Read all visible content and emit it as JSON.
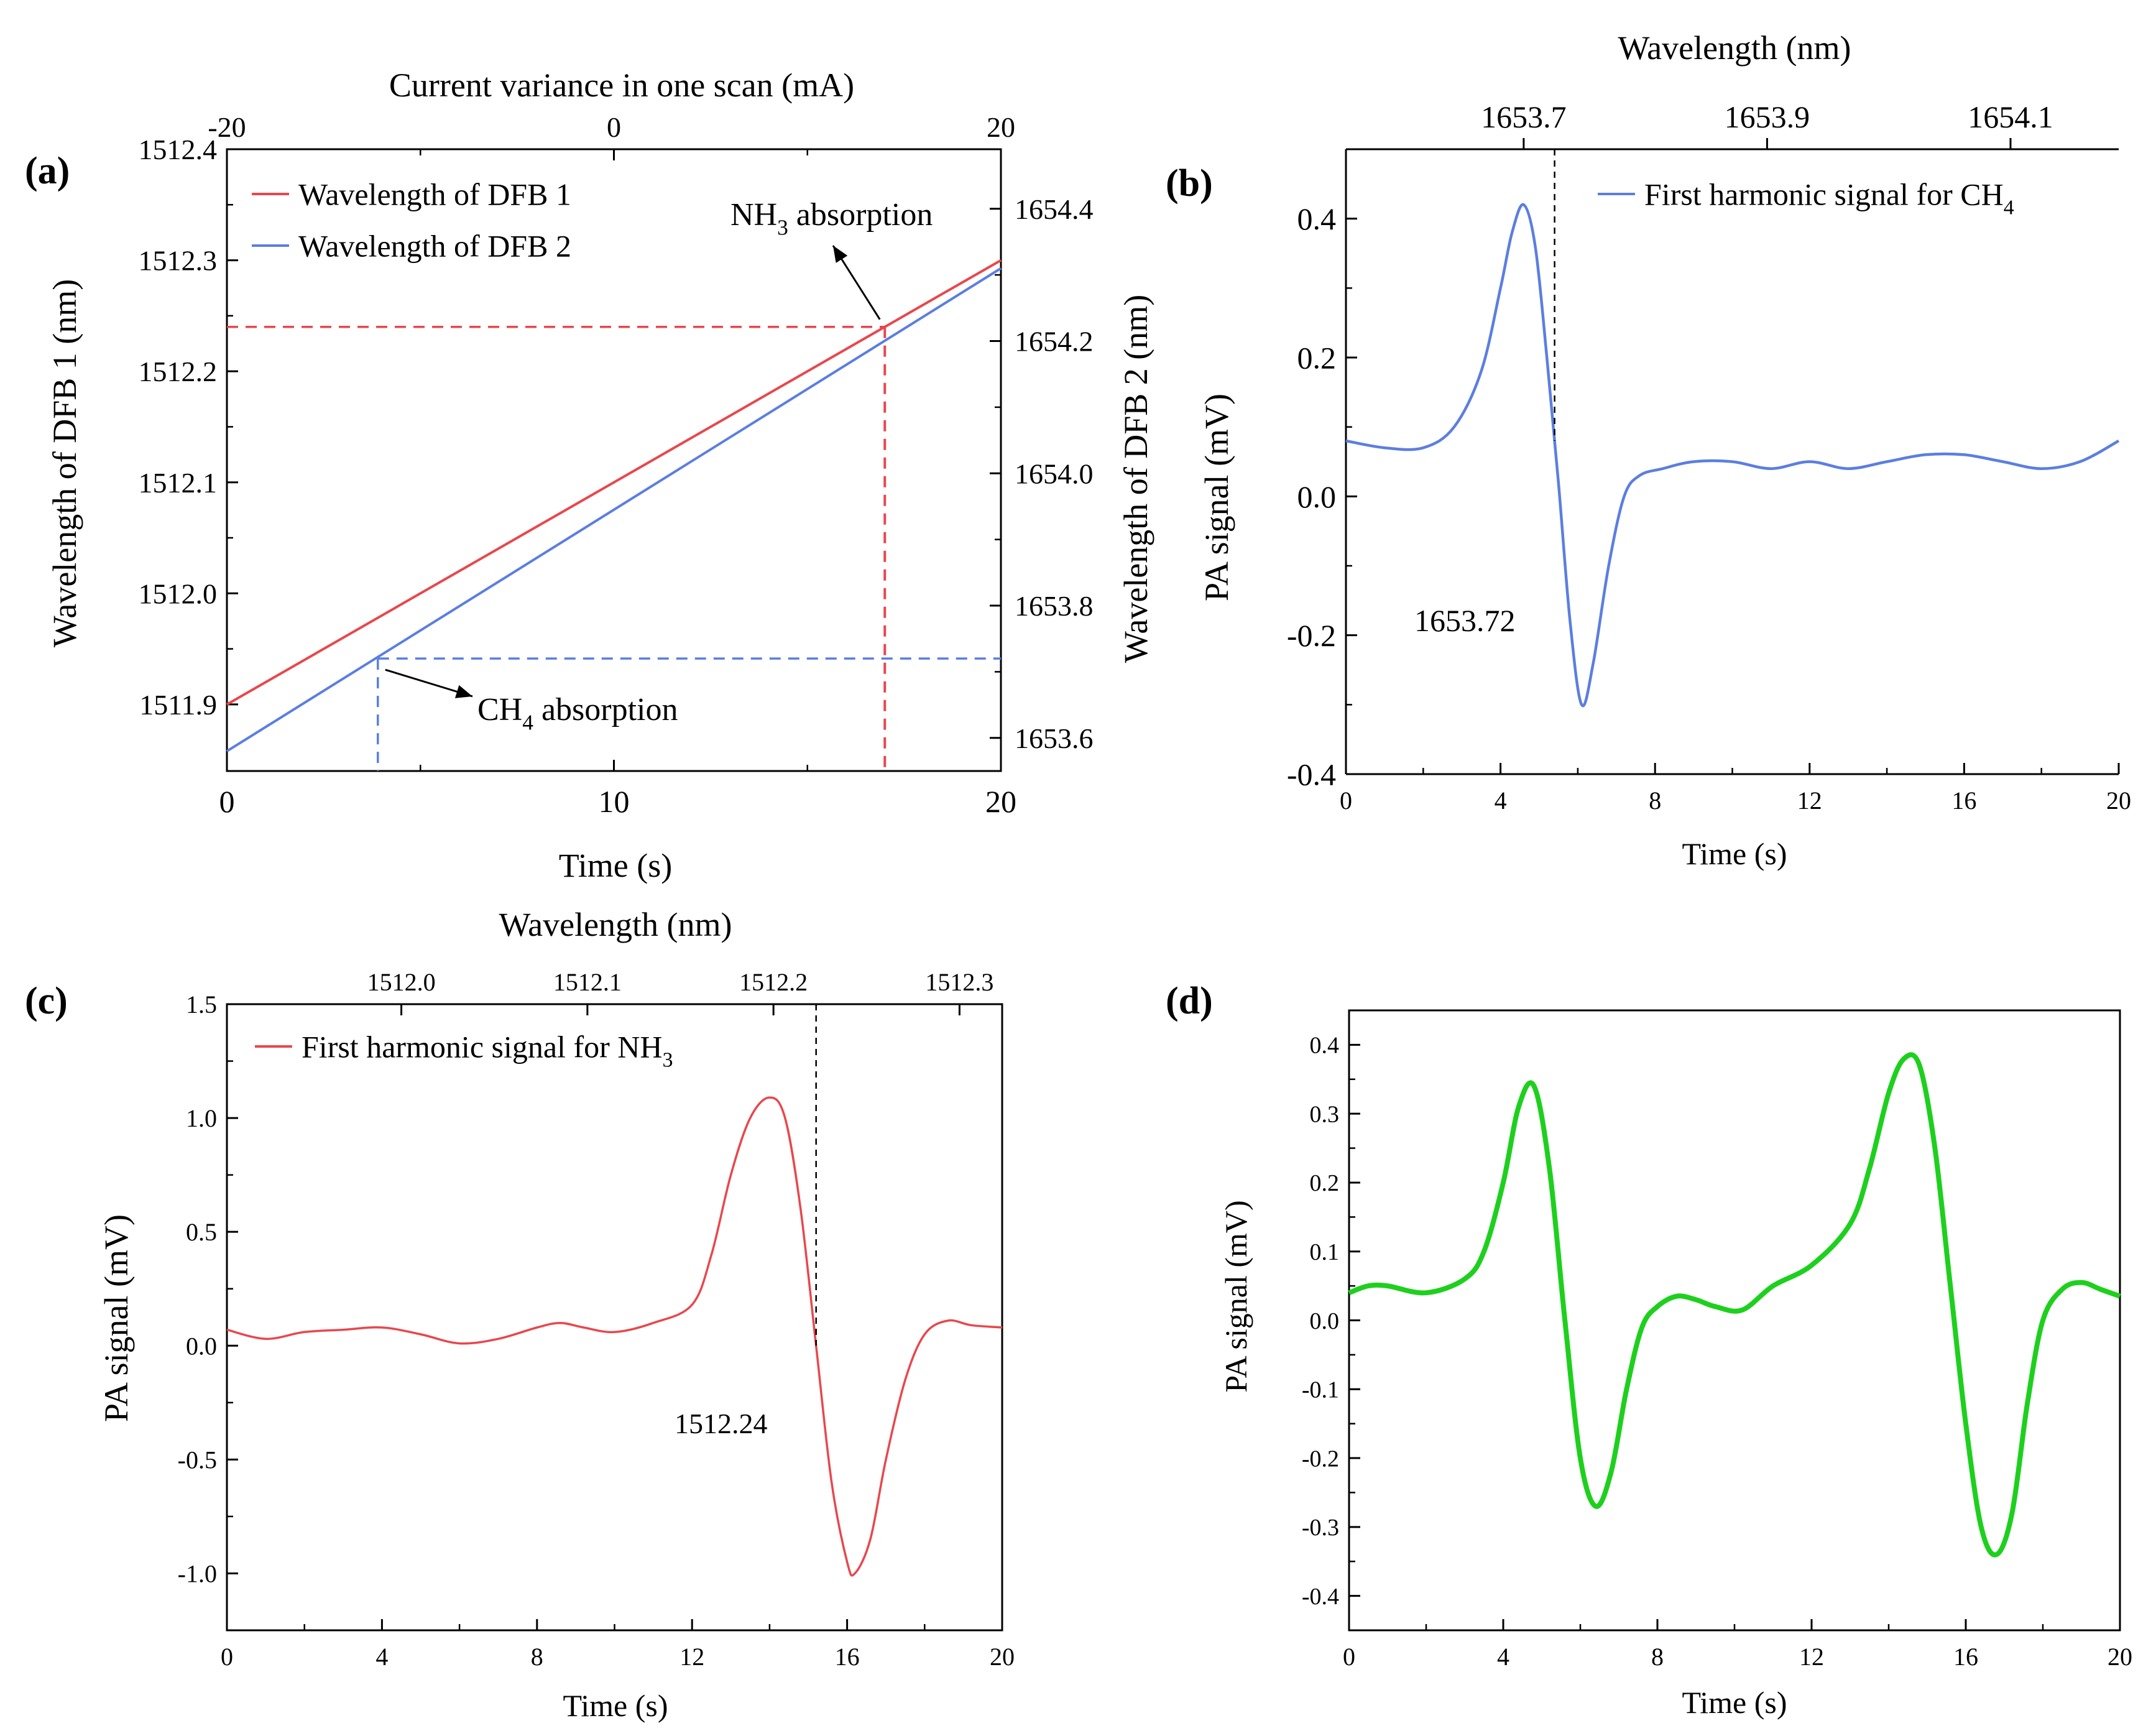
{
  "colors": {
    "red": "#e8474c",
    "blue": "#5b7ee0",
    "green": "#1ed01e",
    "black": "#000000"
  },
  "chart_data": [
    {
      "panel": "(a)",
      "type": "line",
      "xlabel": "Time (s)",
      "ylabel": "Wavelength of DFB 1 (nm)",
      "y2label": "Wavelength of DFB 2 (nm)",
      "x2label": "Current variance in one scan (mA)",
      "xlim": [
        0,
        20
      ],
      "ylim": [
        1511.84,
        1512.4
      ],
      "y2lim": [
        1653.55,
        1654.49
      ],
      "x2lim": [
        -20,
        20
      ],
      "xticks": [
        0,
        10,
        20
      ],
      "yticks": [
        1511.9,
        1512.0,
        1512.1,
        1512.2,
        1512.3,
        1512.4
      ],
      "y2ticks": [
        1653.6,
        1653.8,
        1654.0,
        1654.2,
        1654.4
      ],
      "x2ticks": [
        -20,
        0,
        20
      ],
      "series": [
        {
          "name": "Wavelength of DFB 1",
          "color": "red",
          "axis": "left",
          "x": [
            0,
            20
          ],
          "y": [
            1511.9,
            1512.3
          ]
        },
        {
          "name": "Wavelength of DFB 2",
          "color": "blue",
          "axis": "right",
          "x": [
            0,
            20
          ],
          "y": [
            1653.58,
            1654.31
          ]
        }
      ],
      "annotations": [
        {
          "label": "NH",
          "sub": "3",
          "suffix": " absorption",
          "x": 17,
          "y": 1512.24
        },
        {
          "label": "CH",
          "sub": "4",
          "suffix": " absorption",
          "x": 3.9,
          "y2": 1653.72
        }
      ],
      "legend": "top-left"
    },
    {
      "panel": "(b)",
      "type": "line",
      "xlabel": "Time (s)",
      "ylabel": "PA signal (mV)",
      "x2label": "Wavelength (nm)",
      "xlim": [
        0,
        20
      ],
      "ylim": [
        -0.4,
        0.5
      ],
      "xticks": [
        0,
        4,
        8,
        12,
        16,
        20
      ],
      "yticks": [
        -0.4,
        -0.2,
        0.0,
        0.2,
        0.4
      ],
      "x2ticks": [
        1653.7,
        1653.9,
        1654.1
      ],
      "x2_at_x": [
        4.6,
        10.9,
        17.2
      ],
      "series": [
        {
          "name": "First harmonic signal for CH",
          "sub": "4",
          "color": "blue",
          "x": [
            0,
            1,
            2,
            2.8,
            3.5,
            4.0,
            4.3,
            4.6,
            4.9,
            5.2,
            5.5,
            5.8,
            6.1,
            6.4,
            6.8,
            7.2,
            7.6,
            8.2,
            9.0,
            10,
            11,
            12,
            13,
            14,
            15,
            16,
            17,
            18,
            19,
            20
          ],
          "y": [
            0.08,
            0.07,
            0.07,
            0.1,
            0.18,
            0.3,
            0.38,
            0.42,
            0.36,
            0.2,
            0.02,
            -0.18,
            -0.3,
            -0.24,
            -0.1,
            0.0,
            0.03,
            0.04,
            0.05,
            0.05,
            0.04,
            0.05,
            0.04,
            0.05,
            0.06,
            0.06,
            0.05,
            0.04,
            0.05,
            0.08
          ]
        }
      ],
      "marker": {
        "x": 5.4,
        "label": "1653.72"
      },
      "legend": "top-right"
    },
    {
      "panel": "(c)",
      "type": "line",
      "xlabel": "Time (s)",
      "ylabel": "PA signal (mV)",
      "x2label": "Wavelength (nm)",
      "xlim": [
        0,
        20
      ],
      "ylim": [
        -1.25,
        1.5
      ],
      "xticks": [
        0,
        4,
        8,
        12,
        16,
        20
      ],
      "yticks": [
        -1.0,
        -0.5,
        0.0,
        0.5,
        1.0,
        1.5
      ],
      "x2ticks": [
        1512.0,
        1512.1,
        1512.2,
        1512.3
      ],
      "x2_at_x": [
        4.5,
        9.3,
        14.1,
        18.9
      ],
      "series": [
        {
          "name": "First harmonic signal for NH",
          "sub": "3",
          "color": "red",
          "x": [
            0,
            1,
            2,
            3,
            4,
            5,
            6,
            7,
            8,
            8.6,
            9.2,
            10,
            11,
            12,
            12.5,
            13,
            13.5,
            14.0,
            14.4,
            14.8,
            15.2,
            15.6,
            16.0,
            16.2,
            16.6,
            17.0,
            17.5,
            18.0,
            18.6,
            19.2,
            20
          ],
          "y": [
            0.07,
            0.03,
            0.06,
            0.07,
            0.08,
            0.05,
            0.01,
            0.03,
            0.08,
            0.1,
            0.08,
            0.06,
            0.1,
            0.18,
            0.4,
            0.75,
            1.0,
            1.09,
            1.0,
            0.6,
            0.0,
            -0.6,
            -0.95,
            -1.0,
            -0.85,
            -0.5,
            -0.15,
            0.05,
            0.11,
            0.09,
            0.08
          ]
        }
      ],
      "marker": {
        "x": 15.2,
        "label": "1512.24"
      },
      "legend": "top-left"
    },
    {
      "panel": "(d)",
      "type": "line",
      "xlabel": "Time (s)",
      "ylabel": "PA signal (mV)",
      "xlim": [
        0,
        20
      ],
      "ylim": [
        -0.45,
        0.45
      ],
      "xticks": [
        0,
        4,
        8,
        12,
        16,
        20
      ],
      "yticks": [
        -0.4,
        -0.3,
        -0.2,
        -0.1,
        0.0,
        0.1,
        0.2,
        0.3,
        0.4
      ],
      "series": [
        {
          "name": "",
          "color": "green",
          "x": [
            0,
            0.5,
            1,
            2,
            3,
            3.5,
            4.0,
            4.4,
            4.8,
            5.2,
            5.6,
            6.0,
            6.4,
            6.8,
            7.2,
            7.6,
            8.0,
            8.5,
            9.0,
            9.5,
            10.2,
            11,
            12,
            13,
            13.5,
            14.0,
            14.4,
            14.8,
            15.2,
            15.6,
            16.0,
            16.4,
            16.8,
            17.2,
            17.6,
            18.0,
            18.5,
            19.0,
            19.5,
            20
          ],
          "y": [
            0.04,
            0.05,
            0.05,
            0.04,
            0.06,
            0.1,
            0.2,
            0.31,
            0.34,
            0.22,
            0.0,
            -0.2,
            -0.27,
            -0.22,
            -0.1,
            -0.01,
            0.02,
            0.035,
            0.03,
            0.02,
            0.015,
            0.05,
            0.08,
            0.14,
            0.22,
            0.33,
            0.38,
            0.37,
            0.25,
            0.05,
            -0.15,
            -0.3,
            -0.34,
            -0.28,
            -0.12,
            0.0,
            0.045,
            0.055,
            0.045,
            0.035
          ]
        }
      ]
    }
  ]
}
